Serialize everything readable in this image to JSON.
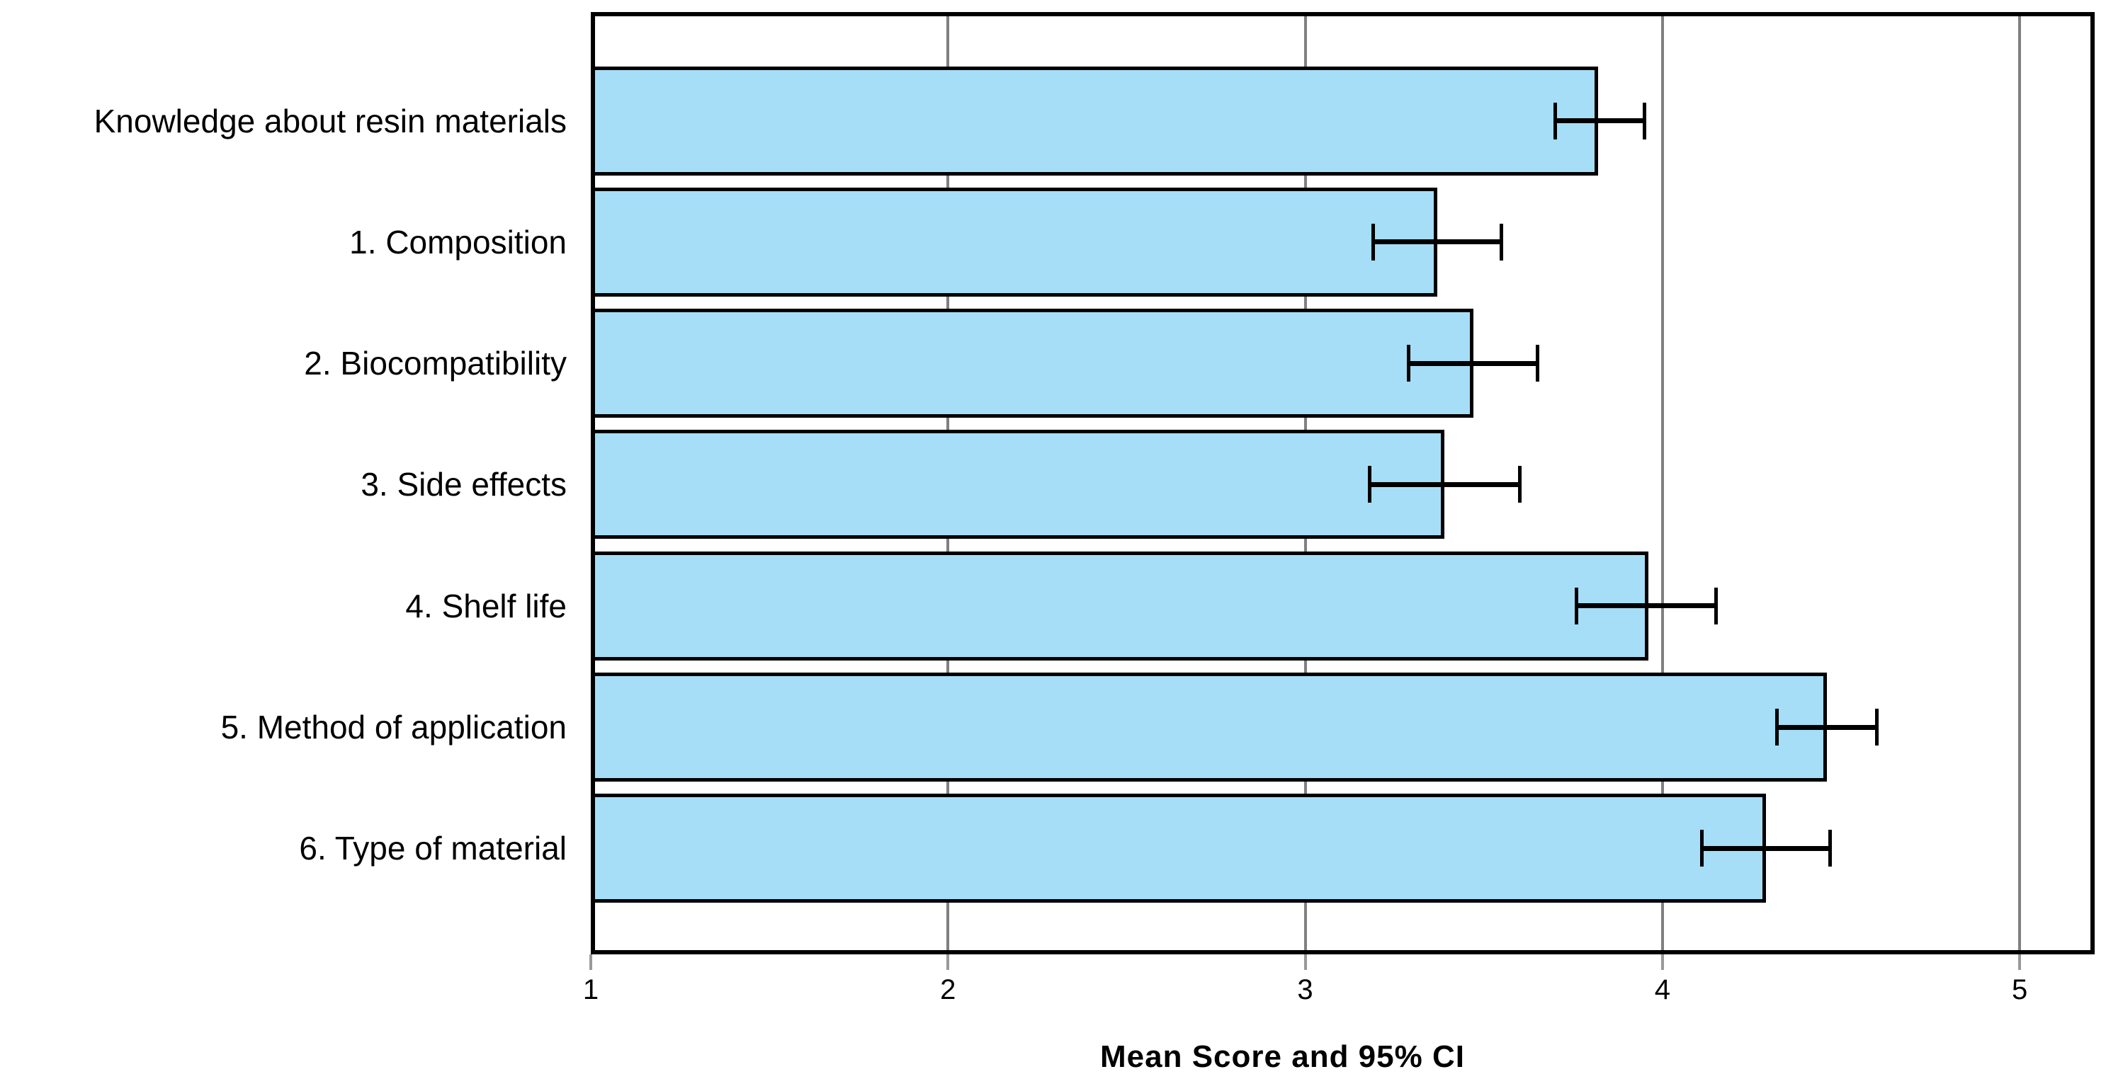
{
  "chart_data": {
    "type": "bar",
    "orientation": "horizontal",
    "title": "",
    "xlabel": "Mean Score and 95% CI",
    "ylabel": "",
    "categories": [
      "Knowledge about resin materials",
      "1. Composition",
      "2. Biocompatibility",
      "3. Side effects",
      "4. Shelf life",
      "5. Method of application",
      "6. Type of material"
    ],
    "series": [
      {
        "name": "Mean Score",
        "values": [
          3.82,
          3.37,
          3.47,
          3.39,
          3.96,
          4.46,
          4.29
        ],
        "ci_low": [
          3.7,
          3.19,
          3.29,
          3.18,
          3.76,
          4.32,
          4.11
        ],
        "ci_high": [
          3.95,
          3.55,
          3.65,
          3.6,
          4.15,
          4.6,
          4.47
        ]
      }
    ],
    "x_ticks": [
      1,
      2,
      3,
      4,
      5
    ],
    "x_tick_labels": [
      "1",
      "2",
      "3",
      "4",
      "5"
    ],
    "xlim": [
      1,
      5.21
    ],
    "grid": "vertical-gridlines-at-ticks-2-to-5",
    "legend": "none",
    "colors": {
      "bar_fill": "#A6DEF7",
      "bar_border": "#000000",
      "gridline": "#808080",
      "error_bar": "#000000",
      "frame": "#000000",
      "background": "#ffffff",
      "tick_mark": "#999999"
    }
  }
}
